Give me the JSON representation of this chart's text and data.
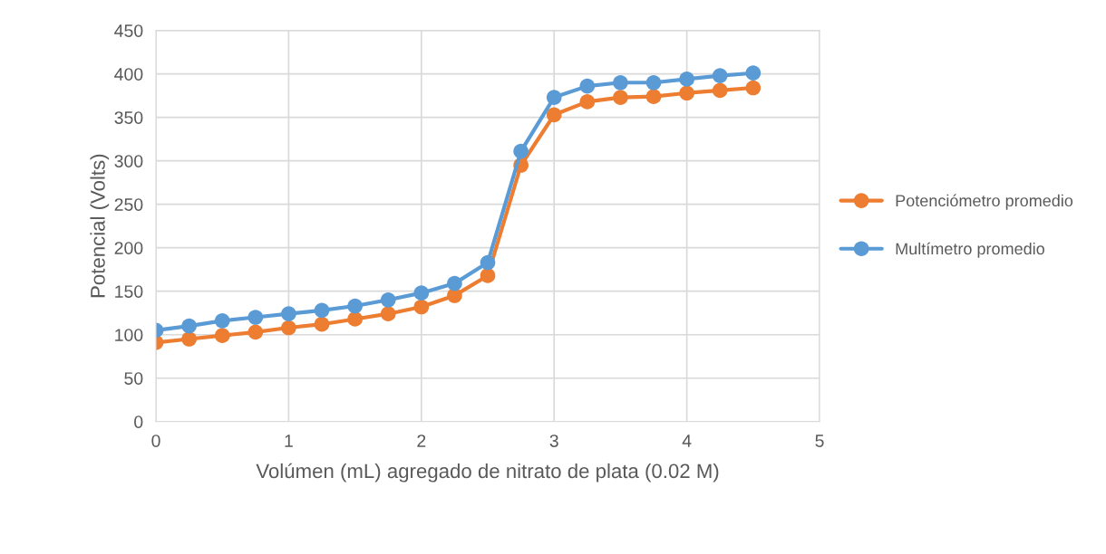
{
  "chart_data": {
    "type": "line",
    "xlabel": "Volúmen (mL) agregado de nitrato de plata (0.02 M)",
    "ylabel": "Potencial (Volts)",
    "x": [
      0,
      0.25,
      0.5,
      0.75,
      1,
      1.25,
      1.5,
      1.75,
      2,
      2.25,
      2.5,
      2.75,
      3,
      3.25,
      3.5,
      3.75,
      4,
      4.25,
      4.5
    ],
    "series": [
      {
        "name": "Potenciómetro promedio",
        "color": "#ed7d31",
        "values": [
          91,
          95,
          99,
          103,
          108,
          112,
          118,
          124,
          132,
          145,
          168,
          295,
          353,
          368,
          373,
          374,
          378,
          381,
          384
        ]
      },
      {
        "name": "Multímetro promedio",
        "color": "#5b9bd5",
        "values": [
          105,
          110,
          116,
          120,
          124,
          128,
          133,
          140,
          148,
          159,
          183,
          311,
          373,
          386,
          390,
          390,
          394,
          398,
          401
        ]
      }
    ],
    "xlim": [
      0,
      5
    ],
    "xticks": [
      0,
      1,
      2,
      3,
      4,
      5
    ],
    "ylim": [
      0,
      450
    ],
    "yticks": [
      0,
      50,
      100,
      150,
      200,
      250,
      300,
      350,
      400,
      450
    ],
    "grid": true,
    "legend": "right",
    "marker": "circle",
    "line_style": "solid"
  }
}
